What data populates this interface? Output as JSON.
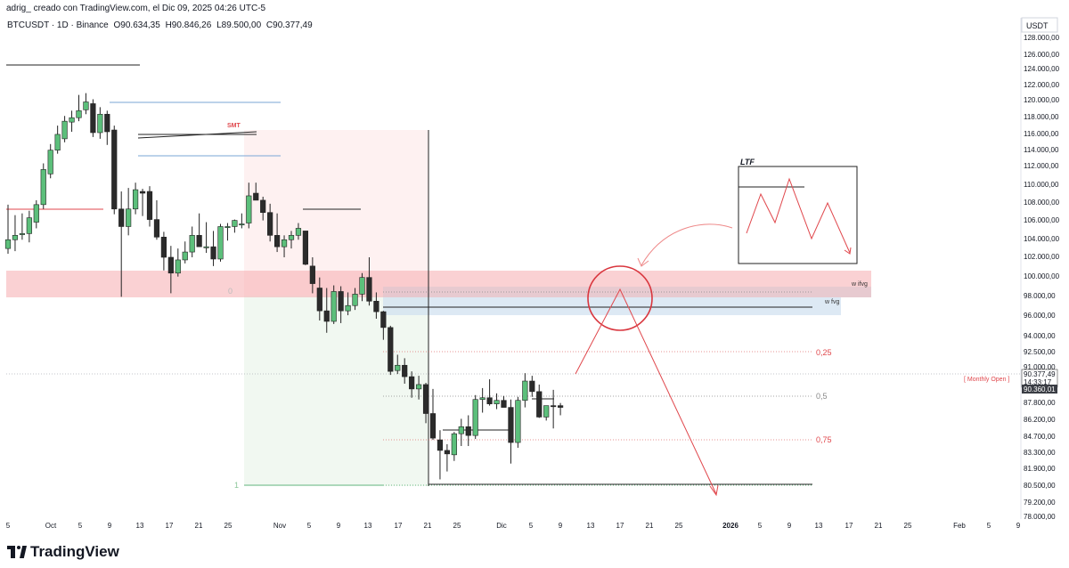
{
  "header": {
    "author_line": "adrig_ creado con TradingView.com, el Dic 09, 2025 04:26 UTC-5",
    "symbol_line": "BTCUSDT · 1D · Binance",
    "ohlc": {
      "open": "O90.634,35",
      "high": "H90.846,26",
      "low": "L89.500,00",
      "close": "C90.377,49"
    }
  },
  "price_axis": {
    "currency": "USDT",
    "tick_labels": [
      "128.000,00",
      "126.000,00",
      "124.000,00",
      "122.000,00",
      "120.000,00",
      "118.000,00",
      "116.000,00",
      "114.000,00",
      "112.000,00",
      "110.000,00",
      "108.000,00",
      "106.000,00",
      "104.000,00",
      "102.000,00",
      "100.000,00",
      "98.000,00",
      "96.000,00",
      "94.000,00",
      "92.500,00",
      "91.000,00",
      "87.800,00",
      "86.200,00",
      "84.700,00",
      "83.300,00",
      "81.900,00",
      "80.500,00",
      "79.200,00",
      "78.000,00"
    ],
    "last_price_label": "90.377,49",
    "countdown_label": "14:33:17",
    "monthly_open_label": "90.360,01"
  },
  "time_axis": {
    "tick_labels": [
      "5",
      "Oct",
      "5",
      "9",
      "13",
      "17",
      "21",
      "25",
      "Nov",
      "5",
      "9",
      "13",
      "17",
      "21",
      "25",
      "Dic",
      "5",
      "9",
      "13",
      "17",
      "21",
      "25",
      "2026",
      "5",
      "9",
      "13",
      "17",
      "21",
      "25",
      "Feb",
      "5",
      "9"
    ]
  },
  "annotations": {
    "smt": "SMT",
    "fib_0": "0",
    "fib_025": "0,25",
    "fib_05": "0,5",
    "fib_075": "0,75",
    "fib_1": "1",
    "w_ifvg": "w ifvg",
    "w_fvg": "w fvg",
    "monthly_open": "[ Monthly Open ]",
    "ltf": "LTF"
  },
  "colors": {
    "bull": "#5cbf7b",
    "bear": "#2b2b2b",
    "red_zone": "#f6b3b5",
    "blue_zone": "#cfe0f0",
    "red_line": "#e0474c",
    "blue_line": "#7aa6d6",
    "text_red": "#e0474c"
  },
  "chart_data": {
    "type": "candlestick",
    "title": "",
    "xlabel": "",
    "ylabel": "",
    "ylim": [
      78000,
      128800
    ],
    "candles": [
      {
        "o": 108500,
        "h": 113500,
        "l": 107900,
        "c": 109500
      },
      {
        "o": 109500,
        "h": 112300,
        "l": 108200,
        "c": 110000
      },
      {
        "o": 110200,
        "h": 112500,
        "l": 109500,
        "c": 110200
      },
      {
        "o": 110200,
        "h": 112800,
        "l": 109200,
        "c": 112000
      },
      {
        "o": 111500,
        "h": 114000,
        "l": 110800,
        "c": 113500
      },
      {
        "o": 113500,
        "h": 118200,
        "l": 113000,
        "c": 117500
      },
      {
        "o": 117000,
        "h": 120400,
        "l": 116500,
        "c": 119700
      },
      {
        "o": 119700,
        "h": 122500,
        "l": 119300,
        "c": 121500
      },
      {
        "o": 121000,
        "h": 123600,
        "l": 120600,
        "c": 123000
      },
      {
        "o": 122900,
        "h": 124200,
        "l": 121800,
        "c": 123400
      },
      {
        "o": 123400,
        "h": 126000,
        "l": 123000,
        "c": 124200
      },
      {
        "o": 124300,
        "h": 126200,
        "l": 123800,
        "c": 125200
      },
      {
        "o": 125000,
        "h": 125500,
        "l": 121200,
        "c": 121700
      },
      {
        "o": 121700,
        "h": 124600,
        "l": 121000,
        "c": 123800
      },
      {
        "o": 123800,
        "h": 124200,
        "l": 120300,
        "c": 121800
      },
      {
        "o": 122000,
        "h": 122500,
        "l": 112400,
        "c": 113000
      },
      {
        "o": 113000,
        "h": 115000,
        "l": 103000,
        "c": 111000
      },
      {
        "o": 111000,
        "h": 115400,
        "l": 110000,
        "c": 113000
      },
      {
        "o": 113000,
        "h": 116000,
        "l": 112400,
        "c": 115200
      },
      {
        "o": 115000,
        "h": 115300,
        "l": 112200,
        "c": 114800
      },
      {
        "o": 115000,
        "h": 115600,
        "l": 111000,
        "c": 111800
      },
      {
        "o": 111800,
        "h": 114000,
        "l": 109500,
        "c": 109800
      },
      {
        "o": 109800,
        "h": 110400,
        "l": 106000,
        "c": 107500
      },
      {
        "o": 107500,
        "h": 108800,
        "l": 103400,
        "c": 105700
      },
      {
        "o": 105700,
        "h": 108500,
        "l": 105300,
        "c": 107200
      },
      {
        "o": 107200,
        "h": 109300,
        "l": 106800,
        "c": 108100
      },
      {
        "o": 108100,
        "h": 111000,
        "l": 107500,
        "c": 110000
      },
      {
        "o": 110000,
        "h": 112500,
        "l": 108800,
        "c": 108700
      },
      {
        "o": 108700,
        "h": 111500,
        "l": 108000,
        "c": 108700
      },
      {
        "o": 108700,
        "h": 110500,
        "l": 106500,
        "c": 107300
      },
      {
        "o": 107300,
        "h": 111300,
        "l": 107000,
        "c": 111000
      },
      {
        "o": 111000,
        "h": 111400,
        "l": 109400,
        "c": 111000
      },
      {
        "o": 111000,
        "h": 111800,
        "l": 110300,
        "c": 111700
      },
      {
        "o": 111200,
        "h": 112500,
        "l": 110800,
        "c": 111300
      },
      {
        "o": 111400,
        "h": 116000,
        "l": 110800,
        "c": 114500
      },
      {
        "o": 114800,
        "h": 116000,
        "l": 114200,
        "c": 114000
      },
      {
        "o": 114000,
        "h": 114400,
        "l": 111700,
        "c": 112600
      },
      {
        "o": 112600,
        "h": 113600,
        "l": 109300,
        "c": 110000
      },
      {
        "o": 110000,
        "h": 112500,
        "l": 108100,
        "c": 108700
      },
      {
        "o": 108700,
        "h": 110000,
        "l": 107500,
        "c": 109500
      },
      {
        "o": 109500,
        "h": 110500,
        "l": 108500,
        "c": 110000
      },
      {
        "o": 110000,
        "h": 111400,
        "l": 109500,
        "c": 110800
      },
      {
        "o": 110500,
        "h": 110400,
        "l": 106600,
        "c": 106700
      },
      {
        "o": 106500,
        "h": 107500,
        "l": 103400,
        "c": 104500
      },
      {
        "o": 104000,
        "h": 105200,
        "l": 100300,
        "c": 101400
      },
      {
        "o": 101400,
        "h": 104000,
        "l": 98900,
        "c": 100200
      },
      {
        "o": 100200,
        "h": 104300,
        "l": 99900,
        "c": 103600
      },
      {
        "o": 103600,
        "h": 104200,
        "l": 100000,
        "c": 101400
      },
      {
        "o": 101400,
        "h": 103500,
        "l": 100900,
        "c": 102000
      },
      {
        "o": 102000,
        "h": 104000,
        "l": 101500,
        "c": 103300
      },
      {
        "o": 103300,
        "h": 105700,
        "l": 102500,
        "c": 105200
      },
      {
        "o": 105200,
        "h": 107500,
        "l": 102000,
        "c": 102500
      },
      {
        "o": 102500,
        "h": 103500,
        "l": 100500,
        "c": 101300
      },
      {
        "o": 101300,
        "h": 101400,
        "l": 98100,
        "c": 99500
      },
      {
        "o": 99500,
        "h": 99700,
        "l": 94100,
        "c": 94500
      },
      {
        "o": 94600,
        "h": 96400,
        "l": 94200,
        "c": 95200
      },
      {
        "o": 95200,
        "h": 96000,
        "l": 93100,
        "c": 93900
      },
      {
        "o": 93900,
        "h": 94500,
        "l": 91500,
        "c": 92500
      },
      {
        "o": 92500,
        "h": 94000,
        "l": 91300,
        "c": 93000
      },
      {
        "o": 93000,
        "h": 93200,
        "l": 88600,
        "c": 89700
      },
      {
        "o": 89700,
        "h": 92500,
        "l": 86700,
        "c": 86900
      },
      {
        "o": 86700,
        "h": 87800,
        "l": 82200,
        "c": 85500
      },
      {
        "o": 85500,
        "h": 86200,
        "l": 83100,
        "c": 85100
      },
      {
        "o": 85000,
        "h": 87600,
        "l": 84300,
        "c": 87400
      },
      {
        "o": 87400,
        "h": 89100,
        "l": 86000,
        "c": 88200
      },
      {
        "o": 88200,
        "h": 89500,
        "l": 86000,
        "c": 87200
      },
      {
        "o": 87200,
        "h": 91800,
        "l": 86800,
        "c": 91300
      },
      {
        "o": 91300,
        "h": 92600,
        "l": 89800,
        "c": 91500
      },
      {
        "o": 91500,
        "h": 93600,
        "l": 90600,
        "c": 90800
      },
      {
        "o": 90800,
        "h": 92000,
        "l": 90200,
        "c": 91200
      },
      {
        "o": 91200,
        "h": 91700,
        "l": 90400,
        "c": 90400
      },
      {
        "o": 90400,
        "h": 91300,
        "l": 84000,
        "c": 86400
      },
      {
        "o": 86400,
        "h": 91600,
        "l": 85800,
        "c": 91200
      },
      {
        "o": 91200,
        "h": 94300,
        "l": 90400,
        "c": 93400
      },
      {
        "o": 93400,
        "h": 94000,
        "l": 91600,
        "c": 92200
      },
      {
        "o": 92200,
        "h": 93000,
        "l": 89200,
        "c": 89300
      },
      {
        "o": 89300,
        "h": 90600,
        "l": 88900,
        "c": 90600
      },
      {
        "o": 90600,
        "h": 92400,
        "l": 88000,
        "c": 90500
      },
      {
        "o": 90600,
        "h": 90900,
        "l": 89500,
        "c": 90400
      }
    ]
  }
}
